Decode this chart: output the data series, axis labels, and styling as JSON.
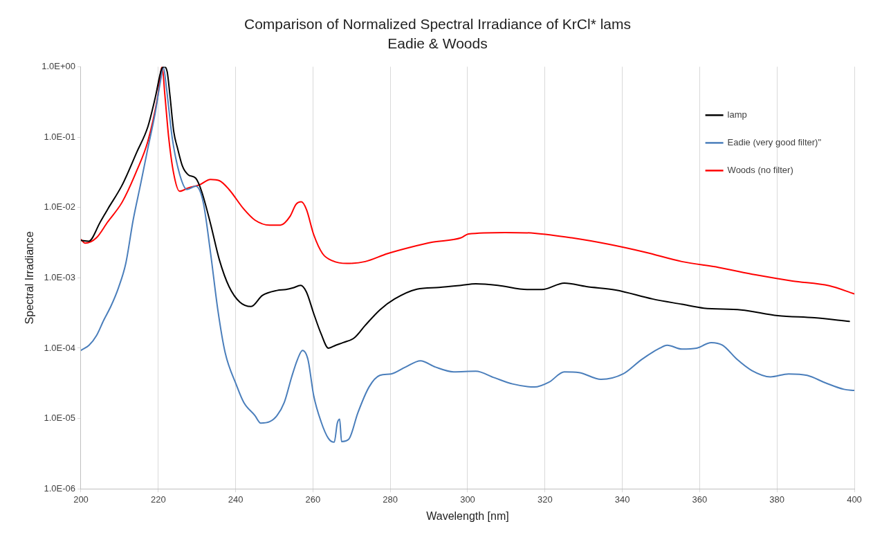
{
  "chart_data": {
    "type": "line",
    "title": "Comparison of Normalized Spectral Irradiance of KrCl* lams",
    "subtitle": "Eadie & Woods",
    "xlabel": "Wavelength [nm]",
    "ylabel": "Spectral Irradiance",
    "log": "y",
    "grid": "x",
    "legend": "top right",
    "marker": "none",
    "line_style": "solid",
    "xlim": [
      200,
      400
    ],
    "xticks": [
      200,
      220,
      240,
      260,
      280,
      300,
      320,
      340,
      360,
      380,
      400
    ],
    "ylim": [
      1e-06,
      1
    ],
    "yticks": [
      {
        "value": 1e-06,
        "label": "1.0E-06"
      },
      {
        "value": 1e-05,
        "label": "1.0E-05"
      },
      {
        "value": 0.0001,
        "label": "1.0E-04"
      },
      {
        "value": 0.001,
        "label": "1.0E-03"
      },
      {
        "value": 0.01,
        "label": "1.0E-02"
      },
      {
        "value": 0.1,
        "label": "1.0E-01"
      },
      {
        "value": 1,
        "label": "1.0E+00"
      }
    ],
    "series": [
      {
        "name": "lamp",
        "color": "#000000",
        "x": [
          200,
          202,
          205,
          206.9,
          210.7,
          214.5,
          217.3,
          219.2,
          220.8,
          221.5,
          222.3,
          223,
          224,
          225,
          226.3,
          227.8,
          229.7,
          231.2,
          233.5,
          235.8,
          238.3,
          241.1,
          244,
          246.9,
          250.7,
          253,
          254.9,
          256.8,
          258.3,
          260.2,
          262.1,
          264,
          265.9,
          267.8,
          270.7,
          273.5,
          277.3,
          281.1,
          286.9,
          292.6,
          298.3,
          302.1,
          307.8,
          315.4,
          319.2,
          325,
          330.7,
          338.3,
          347.8,
          355.4,
          361.1,
          370.7,
          380.2,
          389.7,
          398.7
        ],
        "values": [
          0.0034,
          0.0033,
          0.0062,
          0.0094,
          0.021,
          0.062,
          0.14,
          0.36,
          0.91,
          1,
          0.85,
          0.4,
          0.12,
          0.069,
          0.038,
          0.029,
          0.026,
          0.017,
          0.0059,
          0.0018,
          0.00075,
          0.00045,
          0.00039,
          0.00056,
          0.00066,
          0.00068,
          0.00072,
          0.00078,
          0.00063,
          0.00031,
          0.00016,
          0.0001,
          0.00011,
          0.00012,
          0.00014,
          0.00021,
          0.00035,
          0.0005,
          0.00069,
          0.00073,
          0.00078,
          0.00082,
          0.00078,
          0.00068,
          0.00068,
          0.00084,
          0.00075,
          0.00067,
          0.0005,
          0.00042,
          0.00037,
          0.00035,
          0.00029,
          0.00027,
          0.00024
        ]
      },
      {
        "name": "Eadie (very good filter)\"",
        "color": "#4a7ebb",
        "x": [
          200,
          202.1,
          204,
          205.9,
          207.8,
          209.7,
          211.6,
          213.5,
          215.4,
          217.3,
          219.2,
          220.6,
          221.3,
          222.1,
          223.6,
          225.5,
          227.4,
          229.7,
          231.6,
          233.5,
          235.4,
          237.3,
          240.2,
          242.1,
          245,
          246.5,
          248.8,
          250.7,
          252.6,
          254.5,
          256,
          257.3,
          258.7,
          260.2,
          262.1,
          264,
          265.5,
          266.3,
          266.9,
          267.4,
          269.3,
          271.6,
          274.5,
          277.3,
          280.2,
          284,
          287.8,
          291.6,
          296.4,
          302.1,
          306.9,
          311.6,
          317.3,
          321.1,
          325,
          328.8,
          334.5,
          340.2,
          345,
          349.7,
          351.6,
          355.4,
          359.2,
          363,
          365.9,
          369.7,
          373.5,
          378.3,
          383,
          387.8,
          392.6,
          397.3,
          400
        ],
        "values": [
          9.3e-05,
          0.00011,
          0.00015,
          0.00025,
          0.0004,
          0.00072,
          0.0016,
          0.0066,
          0.021,
          0.069,
          0.22,
          0.64,
          1,
          0.51,
          0.098,
          0.03,
          0.018,
          0.02,
          0.012,
          0.0023,
          0.00035,
          8.6e-05,
          3e-05,
          1.7e-05,
          1.1e-05,
          8.6e-06,
          9e-06,
          1.1e-05,
          1.7e-05,
          3.9e-05,
          6.9e-05,
          9.3e-05,
          6.9e-05,
          2.1e-05,
          9e-06,
          5.2e-06,
          4.6e-06,
          8.6e-06,
          9.8e-06,
          4.7e-06,
          5.1e-06,
          1.2e-05,
          2.8e-05,
          4.1e-05,
          4.3e-05,
          5.4e-05,
          6.6e-05,
          5.4e-05,
          4.6e-05,
          4.7e-05,
          3.8e-05,
          3.1e-05,
          2.8e-05,
          3.3e-05,
          4.6e-05,
          4.5e-05,
          3.6e-05,
          4.3e-05,
          6.9e-05,
          0.0001,
          0.00011,
          9.7e-05,
          0.0001,
          0.00012,
          0.00011,
          6.9e-05,
          4.8e-05,
          3.9e-05,
          4.3e-05,
          4.1e-05,
          3.2e-05,
          2.6e-05,
          2.5e-05
        ]
      },
      {
        "name": "Woods (no filter)",
        "color": "#ff0000",
        "x": [
          200,
          201.1,
          204,
          206.9,
          210.7,
          214.5,
          217.3,
          219.8,
          221,
          221.7,
          222.7,
          224,
          225.5,
          227.8,
          230.7,
          233.5,
          235.8,
          238.3,
          242.1,
          245,
          248.8,
          251.6,
          254.1,
          255.6,
          257,
          258.3,
          260.2,
          262.5,
          265,
          268.8,
          273.5,
          279.2,
          285,
          290.7,
          298.3,
          300.2,
          309.7,
          317.3,
          326.9,
          336.4,
          346,
          355.4,
          365,
          374.5,
          384,
          393.5,
          400
        ],
        "values": [
          0.0035,
          0.0031,
          0.0037,
          0.0062,
          0.012,
          0.034,
          0.087,
          0.36,
          1,
          0.4,
          0.098,
          0.03,
          0.017,
          0.019,
          0.021,
          0.025,
          0.024,
          0.018,
          0.0095,
          0.0066,
          0.0056,
          0.0056,
          0.0075,
          0.011,
          0.012,
          0.0094,
          0.0041,
          0.0022,
          0.00175,
          0.0016,
          0.0017,
          0.0022,
          0.0027,
          0.0032,
          0.0037,
          0.0042,
          0.0044,
          0.0043,
          0.0037,
          0.003,
          0.0023,
          0.0017,
          0.0014,
          0.0011,
          0.0009,
          0.00077,
          0.00059
        ]
      }
    ]
  }
}
